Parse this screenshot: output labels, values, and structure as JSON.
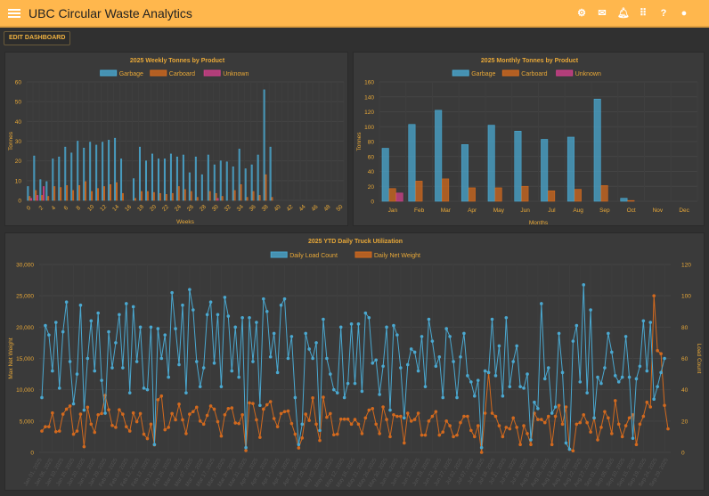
{
  "app": {
    "title": "UBC Circular Waste Analytics",
    "icons": [
      "gear-icon",
      "mail-icon",
      "bell-icon",
      "apps-grid-icon",
      "help-icon",
      "account-icon"
    ],
    "edit_button": "EDIT DASHBOARD"
  },
  "colors": {
    "header": "#ffb74d",
    "text": "#f0b240",
    "garbage": "#4aa8d0",
    "carboard": "#d2691e",
    "unknown": "#d0408a"
  },
  "chart_data": [
    {
      "type": "bar",
      "title": "2025 Weekly Tonnes by Product",
      "xlabel": "Weeks",
      "ylabel": "Tonnes",
      "ylim": [
        0,
        60
      ],
      "yticks": [
        0,
        10,
        20,
        30,
        40,
        50,
        60
      ],
      "xticks": [
        "0",
        "2",
        "4",
        "6",
        "8",
        "10",
        "12",
        "14",
        "16",
        "18",
        "20",
        "22",
        "24",
        "26",
        "28",
        "30",
        "32",
        "34",
        "36",
        "38",
        "40",
        "42",
        "44",
        "46",
        "48",
        "50"
      ],
      "weeks": 51,
      "legend": "top",
      "series": [
        {
          "name": "Garbage",
          "values": [
            7,
            22.5,
            10.5,
            9.5,
            21,
            22,
            27,
            24,
            30,
            26.5,
            29.5,
            28,
            29.5,
            30.5,
            31.5,
            21,
            0,
            11,
            27,
            20,
            23.5,
            21,
            21,
            23.5,
            22,
            23,
            14,
            22,
            13,
            23,
            18,
            20,
            19.5,
            17,
            26,
            16,
            18,
            23,
            56,
            27
          ]
        },
        {
          "name": "Carboard",
          "values": [
            2,
            5,
            2.5,
            2,
            7,
            6.5,
            7.5,
            5,
            7.5,
            9.5,
            4.5,
            6,
            7,
            8,
            9,
            3.5,
            0,
            1,
            4.5,
            4.5,
            4,
            3.5,
            3,
            3.5,
            7,
            5.5,
            4.5,
            1.5,
            0,
            4.5,
            3.5,
            2,
            0,
            5,
            8,
            1.5,
            4.5,
            2.5,
            13,
            1.5
          ]
        },
        {
          "name": "Unknown",
          "values": [
            1,
            2.5,
            7,
            0,
            0,
            0,
            0,
            0,
            0,
            0,
            0,
            0,
            0,
            0,
            0,
            0,
            0,
            0,
            0,
            0,
            0,
            0,
            0,
            0,
            0,
            0,
            0,
            0,
            0,
            0,
            1,
            0,
            0,
            0,
            0,
            0,
            0,
            0,
            0,
            0
          ]
        }
      ]
    },
    {
      "type": "bar",
      "title": "2025 Monthly Tonnes by Product",
      "xlabel": "Months",
      "ylabel": "Tonnes",
      "ylim": [
        0,
        160
      ],
      "yticks": [
        0,
        20,
        40,
        60,
        80,
        100,
        120,
        140,
        160
      ],
      "categories": [
        "Jan",
        "Feb",
        "Mar",
        "Apr",
        "May",
        "Jun",
        "Jul",
        "Aug",
        "Sep",
        "Oct",
        "Nov",
        "Dec"
      ],
      "legend": "top",
      "series": [
        {
          "name": "Garbage",
          "values": [
            71,
            103,
            122,
            76,
            102,
            94,
            83,
            86,
            137,
            4,
            0,
            0
          ]
        },
        {
          "name": "Carboard",
          "values": [
            17,
            27,
            30,
            18,
            18,
            20,
            14,
            16,
            21,
            1,
            0,
            0
          ]
        },
        {
          "name": "Unknown",
          "values": [
            11,
            0,
            0,
            0,
            0,
            0,
            0,
            0,
            0,
            0,
            0,
            0
          ]
        }
      ]
    },
    {
      "type": "line",
      "title": "2025 YTD Daily Truck Utilization",
      "ylabel_left": "Max Net Weight",
      "ylabel_right": "Load Count",
      "ylim_left": [
        0,
        30000
      ],
      "ylim_right": [
        0,
        120
      ],
      "yticks_left": [
        "0",
        "5,000",
        "10,000",
        "15,000",
        "20,000",
        "25,000",
        "30,000"
      ],
      "yticks_right": [
        "0",
        "20",
        "40",
        "60",
        "80",
        "100",
        "120"
      ],
      "legend": "top",
      "series": [
        {
          "name": "Daily Load Count",
          "axis": "right",
          "values": [
            35,
            81,
            75,
            52,
            83,
            41,
            77,
            96,
            58,
            31,
            50,
            94,
            27,
            60,
            84,
            52,
            89,
            46,
            25,
            77,
            54,
            70,
            88,
            54,
            95,
            38,
            93,
            58,
            80,
            41,
            40,
            80,
            5,
            79,
            60,
            75,
            48,
            102,
            79,
            56,
            94,
            38,
            104,
            91,
            58,
            42,
            54,
            88,
            96,
            57,
            88,
            42,
            99,
            87,
            52,
            80,
            48,
            86,
            3,
            86,
            58,
            83,
            30,
            98,
            90,
            61,
            76,
            51,
            94,
            98,
            60,
            74,
            35,
            5,
            18,
            76,
            66,
            60,
            70,
            14,
            85,
            60,
            50,
            40,
            38,
            80,
            35,
            44,
            82,
            44,
            82,
            39,
            89,
            86,
            57,
            59,
            37,
            55,
            80,
            27,
            81,
            75,
            54,
            22,
            56,
            66,
            64,
            52,
            74,
            42,
            85,
            71,
            55,
            61,
            35,
            79,
            74,
            58,
            35,
            61,
            76,
            49,
            45,
            36,
            46,
            3,
            52,
            51,
            85,
            49,
            68,
            36,
            86,
            42,
            58,
            68,
            42,
            41,
            50,
            8,
            32,
            28,
            95,
            47,
            54,
            25,
            29,
            76,
            51,
            6,
            2,
            71,
            81,
            45,
            107,
            38,
            91,
            22,
            48,
            44,
            54,
            76,
            64,
            49,
            45,
            48,
            74,
            48,
            9,
            47,
            55,
            84,
            52,
            83,
            34,
            42,
            51,
            60
          ]
        },
        {
          "name": "Daily Net Weight",
          "axis": "left",
          "values": [
            3400,
            4100,
            4100,
            6300,
            3300,
            3400,
            6100,
            6900,
            7400,
            2900,
            3400,
            6100,
            900,
            7200,
            4500,
            3200,
            6000,
            6200,
            9100,
            6800,
            4300,
            4000,
            6800,
            6100,
            4100,
            3400,
            6300,
            4900,
            6200,
            2900,
            2200,
            4500,
            1200,
            8400,
            9000,
            3600,
            4000,
            6200,
            5200,
            7700,
            5200,
            3000,
            6100,
            6500,
            7200,
            5000,
            4500,
            5900,
            7400,
            6900,
            4900,
            2600,
            6000,
            7000,
            7100,
            4700,
            4600,
            6000,
            300,
            7900,
            7800,
            5200,
            2400,
            6900,
            7600,
            8100,
            5400,
            4100,
            6200,
            6500,
            6600,
            4600,
            2900,
            700,
            2300,
            6100,
            5100,
            8700,
            4500,
            1900,
            8800,
            5600,
            6200,
            2800,
            2900,
            5300,
            5300,
            5300,
            4500,
            5250,
            4500,
            3000,
            5500,
            6750,
            7000,
            4500,
            3000,
            7250,
            5250,
            2500,
            6000,
            5750,
            5750,
            1500,
            6250,
            5000,
            5250,
            6250,
            2750,
            2750,
            5000,
            5750,
            6500,
            2750,
            3250,
            5000,
            4250,
            2500,
            2750,
            4750,
            5750,
            5750,
            3500,
            2500,
            4250,
            0,
            6250,
            12750,
            6250,
            5750,
            4250,
            2500,
            4000,
            3750,
            5500,
            4000,
            1250,
            4250,
            3000,
            1250,
            6250,
            5250,
            5250,
            4750,
            5750,
            1250,
            5750,
            7500,
            4500,
            7250,
            500,
            250,
            4500,
            4750,
            6000,
            4750,
            3250,
            5500,
            2000,
            4000,
            6500,
            5500,
            3000,
            8250,
            4500,
            2500,
            4250,
            5500,
            6000,
            1250,
            4500,
            5750,
            8000,
            7250,
            25000,
            16250,
            15750,
            7500,
            3750
          ]
        }
      ],
      "x_labels": [
        "Jan 01, 2025",
        "Jan 06, 2025",
        "Jan 10, 2025",
        "Jan 15, 2025",
        "Jan 20, 2025",
        "Jan 24, 2025",
        "Jan 29, 2025",
        "Feb 03, 2025",
        "Feb 07, 2025",
        "Feb 12, 2025",
        "Feb 17, 2025",
        "Feb 21, 2025",
        "Feb 26, 2025",
        "Mar 03, 2025",
        "Mar 07, 2025",
        "Mar 12, 2025",
        "Mar 17, 2025",
        "Mar 21, 2025",
        "Mar 26, 2025",
        "Mar 31, 2025",
        "Apr 04, 2025",
        "Apr 09, 2025",
        "Apr 14, 2025",
        "Apr 18, 2025",
        "Apr 23, 2025",
        "Apr 28, 2025",
        "May 02, 2025",
        "May 07, 2025",
        "May 12, 2025",
        "May 16, 2025",
        "May 21, 2025",
        "May 26, 2025",
        "May 30, 2025",
        "Jun 04, 2025",
        "Jun 09, 2025",
        "Jun 13, 2025",
        "Jun 18, 2025",
        "Jun 23, 2025",
        "Jun 27, 2025",
        "Jul 02, 2025",
        "Jul 07, 2025",
        "Jul 11, 2025",
        "Jul 16, 2025",
        "Jul 21, 2025",
        "Jul 25, 2025",
        "Jul 30, 2025",
        "Aug 04, 2025",
        "Aug 08, 2025",
        "Aug 13, 2025",
        "Aug 18, 2025",
        "Aug 22, 2025",
        "Aug 27, 2025",
        "Sep 01, 2025",
        "Sep 05, 2025",
        "Sep 10, 2025",
        "Sep 15, 2025",
        "Sep 19, 2025",
        "Sep 24, 2025",
        "Sep 29, 2025"
      ]
    }
  ]
}
